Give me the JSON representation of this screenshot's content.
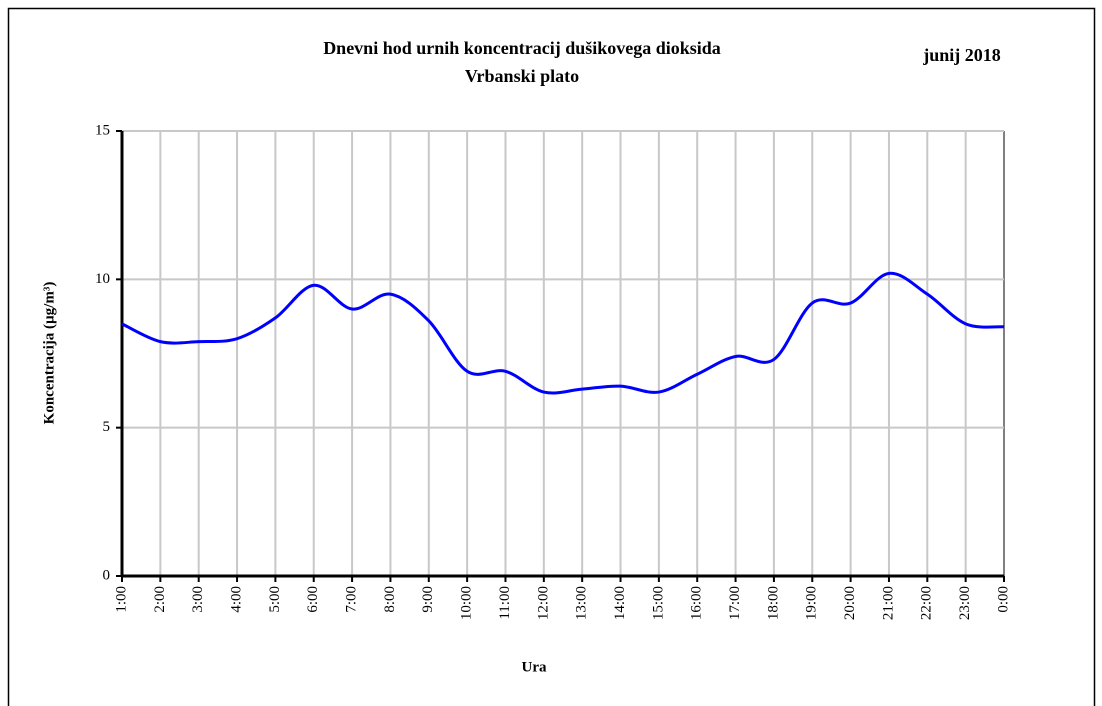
{
  "chart_data": {
    "type": "line",
    "title": [
      "Dnevni hod urnih koncentracij dušikovega dioksida",
      "Vrbanski plato"
    ],
    "annotation": "junij 2018",
    "x_label": "Ura",
    "y_label": "Koncentracija (µg/m³)",
    "categories": [
      "1:00",
      "2:00",
      "3:00",
      "4:00",
      "5:00",
      "6:00",
      "7:00",
      "8:00",
      "9:00",
      "10:00",
      "11:00",
      "12:00",
      "13:00",
      "14:00",
      "15:00",
      "16:00",
      "17:00",
      "18:00",
      "19:00",
      "20:00",
      "21:00",
      "22:00",
      "23:00",
      "0:00"
    ],
    "series": [
      {
        "color": "#0000ff",
        "values": [
          8.5,
          7.9,
          7.9,
          8.0,
          8.7,
          9.8,
          9.0,
          9.5,
          8.6,
          6.9,
          6.9,
          6.2,
          6.3,
          6.4,
          6.2,
          6.8,
          7.4,
          7.3,
          9.2,
          9.2,
          10.2,
          9.5,
          8.5,
          8.4
        ]
      }
    ],
    "ylim": [
      0,
      15
    ],
    "yticks": [
      0,
      5,
      10,
      15
    ],
    "grid": true,
    "smooth": true
  }
}
